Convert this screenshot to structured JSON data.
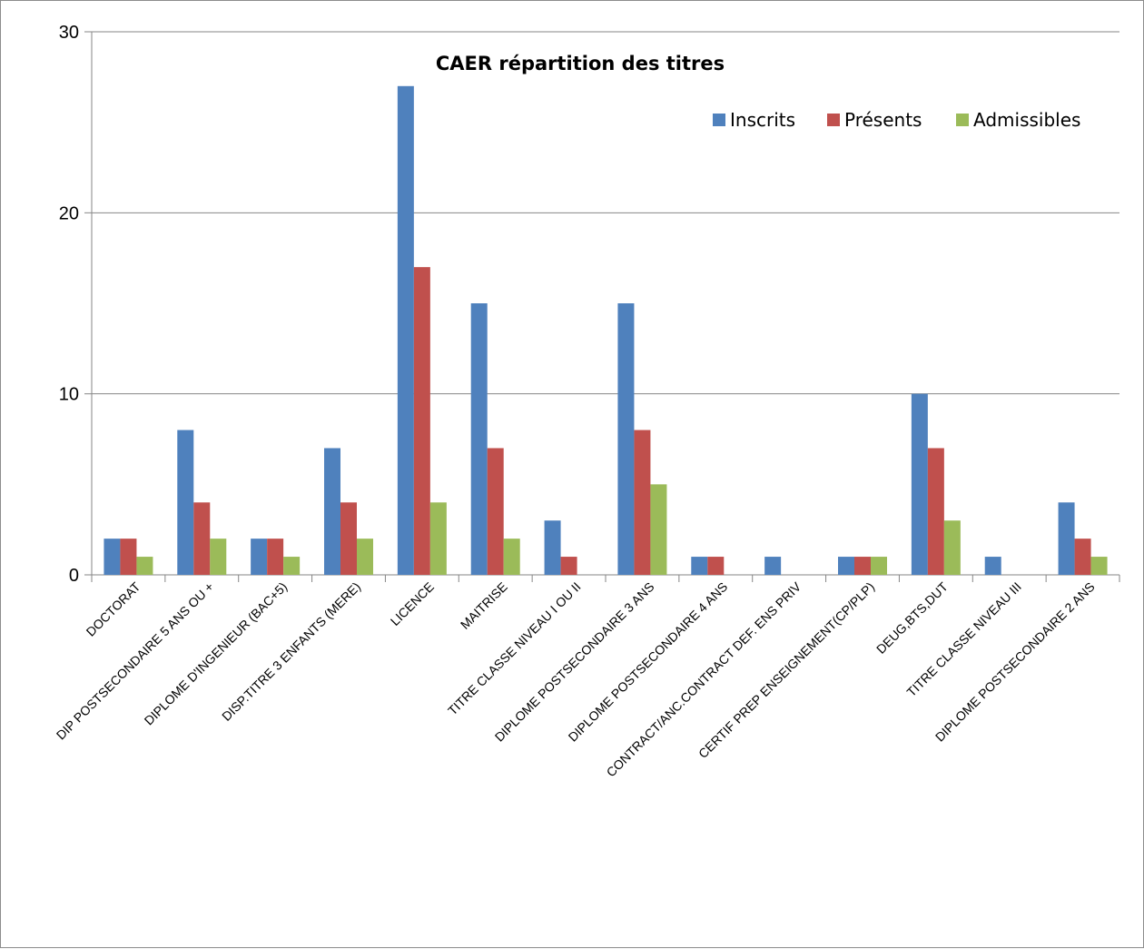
{
  "chart_data": {
    "type": "bar",
    "title": "CAER  répartition des titres",
    "xlabel": "",
    "ylabel": "",
    "ylim": [
      0,
      30
    ],
    "yticks": [
      0,
      10,
      20,
      30
    ],
    "grid": true,
    "legend_position": "top-right",
    "categories": [
      "DOCTORAT",
      "DIP POSTSECONDAIRE 5 ANS OU +",
      "DIPLOME D'INGENIEUR (BAC+5)",
      "DISP.TITRE 3 ENFANTS (MERE)",
      "LICENCE",
      "MAITRISE",
      "TITRE CLASSE NIVEAU I OU II",
      "DIPLOME POSTSECONDAIRE 3 ANS",
      "DIPLOME POSTSECONDAIRE 4 ANS",
      "CONTRACT/ANC.CONTRACT DEF. ENS PRIV",
      "CERTIF PREP ENSEIGNEMENT(CP/PLP)",
      "DEUG,BTS,DUT",
      "TITRE CLASSE NIVEAU III",
      "DIPLOME POSTSECONDAIRE 2 ANS"
    ],
    "series": [
      {
        "name": "Inscrits",
        "color": "#4f81bd",
        "values": [
          2,
          8,
          2,
          7,
          27,
          15,
          3,
          15,
          1,
          1,
          1,
          10,
          1,
          4
        ]
      },
      {
        "name": "Présents",
        "color": "#c0504d",
        "values": [
          2,
          4,
          2,
          4,
          17,
          7,
          1,
          8,
          1,
          0,
          1,
          7,
          0,
          2
        ]
      },
      {
        "name": "Admissibles",
        "color": "#9bbb59",
        "values": [
          1,
          2,
          1,
          2,
          4,
          2,
          0,
          5,
          0,
          0,
          1,
          3,
          0,
          1
        ]
      }
    ]
  }
}
